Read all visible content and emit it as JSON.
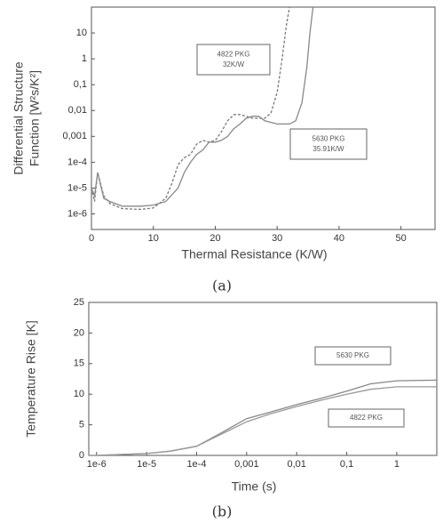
{
  "chart_data": [
    {
      "type": "line",
      "caption": "(a)",
      "x_label": "Thermal Resistance (K/W)",
      "y_label": [
        "Differential Structure",
        "Function [W²s/K²]"
      ],
      "ylog": true,
      "xlim": [
        0,
        55.5
      ],
      "ylim": [
        2.5e-07,
        100
      ],
      "xticks": [
        0,
        10,
        20,
        30,
        40,
        50
      ],
      "yticks": [
        {
          "value": 1e-06,
          "label": "1e-6"
        },
        {
          "value": 1e-05,
          "label": "1e-5"
        },
        {
          "value": 0.0001,
          "label": "1e-4"
        },
        {
          "value": 0.001,
          "label": "0,001"
        },
        {
          "value": 0.01,
          "label": "0,01"
        },
        {
          "value": 0.1,
          "label": "0,1"
        },
        1,
        10
      ],
      "series": [
        {
          "name": "4822 PKG",
          "note": "32K/W",
          "color": "#777",
          "dash": true,
          "x": [
            0,
            0.5,
            1,
            2,
            3,
            5,
            8,
            10,
            12,
            13,
            14,
            15,
            16,
            17,
            18,
            19,
            20,
            21,
            22,
            23,
            24,
            25,
            26,
            28,
            29,
            30,
            30.8,
            31.5,
            32
          ],
          "values": [
            1e-05,
            3e-06,
            4e-05,
            5e-06,
            2.5e-06,
            1.6e-06,
            1.5e-06,
            1.7e-06,
            4e-06,
            1.5e-05,
            8e-05,
            0.00015,
            0.0002,
            0.0005,
            0.0007,
            0.0006,
            0.0007,
            0.0015,
            0.004,
            0.007,
            0.007,
            0.006,
            0.005,
            0.005,
            0.008,
            0.05,
            1,
            20,
            100
          ]
        },
        {
          "name": "5630 PKG",
          "note": "35.91K/W",
          "color": "#888",
          "dash": false,
          "x": [
            0,
            0.5,
            1,
            2,
            3,
            5,
            8,
            10,
            12,
            14,
            15,
            16,
            17,
            18,
            19,
            20,
            21,
            22,
            23,
            24,
            25,
            26,
            27,
            28,
            30,
            32,
            33,
            34,
            34.8,
            35.3,
            35.8
          ],
          "values": [
            1e-05,
            5e-06,
            4e-05,
            4e-06,
            3e-06,
            2e-06,
            2e-06,
            2.2e-06,
            3e-06,
            1e-05,
            4e-05,
            0.0001,
            0.0002,
            0.0003,
            0.0006,
            0.0006,
            0.0007,
            0.001,
            0.002,
            0.003,
            0.005,
            0.006,
            0.006,
            0.004,
            0.003,
            0.003,
            0.004,
            0.02,
            0.5,
            10,
            100
          ]
        }
      ]
    },
    {
      "type": "line",
      "caption": "(b)",
      "x_label": "Time (s)",
      "y_label": [
        "Temperature Rise [K]"
      ],
      "xlog": true,
      "xlim": [
        7e-07,
        6.3
      ],
      "ylim": [
        0,
        25
      ],
      "xticks": [
        {
          "value": 1e-06,
          "label": "1e-6"
        },
        {
          "value": 1e-05,
          "label": "1e-5"
        },
        {
          "value": 0.0001,
          "label": "1e-4"
        },
        {
          "value": 0.001,
          "label": "0,001"
        },
        {
          "value": 0.01,
          "label": "0,01"
        },
        {
          "value": 0.1,
          "label": "0,1"
        },
        1
      ],
      "yticks": [
        0,
        5,
        10,
        15,
        20,
        25
      ],
      "series": [
        {
          "name": "5630 PKG",
          "color": "#888",
          "dash": false,
          "x": [
            7e-07,
            1e-06,
            1e-05,
            3e-05,
            0.0001,
            0.0003,
            0.001,
            0.003,
            0.01,
            0.03,
            0.1,
            0.3,
            1,
            6.3
          ],
          "values": [
            0,
            0,
            0.3,
            0.7,
            1.5,
            3.6,
            6,
            7.1,
            8.3,
            9.3,
            10.5,
            11.7,
            12.2,
            12.3
          ]
        },
        {
          "name": "4822 PKG",
          "color": "#999",
          "dash": false,
          "x": [
            7e-07,
            1e-06,
            1e-05,
            3e-05,
            0.0001,
            0.0003,
            0.001,
            0.003,
            0.01,
            0.03,
            0.1,
            0.3,
            1,
            6.3
          ],
          "values": [
            0,
            0,
            0.3,
            0.7,
            1.5,
            3.4,
            5.5,
            6.8,
            8,
            9,
            10,
            10.8,
            11.2,
            11.2
          ]
        }
      ]
    }
  ]
}
